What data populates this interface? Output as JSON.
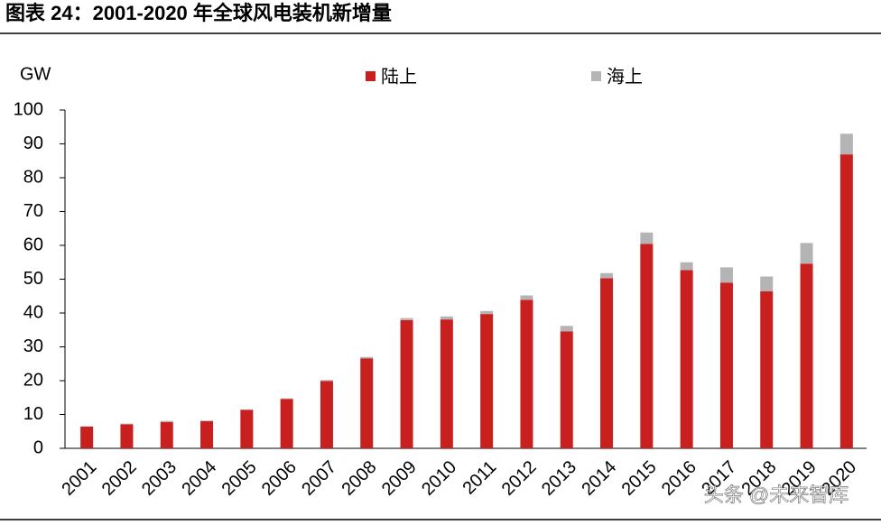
{
  "chart_data": {
    "type": "stacked_bar",
    "title": "图表 24：2001-2020 年全球风电装机新增量",
    "y_label": "GW",
    "categories": [
      "2001",
      "2002",
      "2003",
      "2004",
      "2005",
      "2006",
      "2007",
      "2008",
      "2009",
      "2010",
      "2011",
      "2012",
      "2013",
      "2014",
      "2015",
      "2016",
      "2017",
      "2018",
      "2019",
      "2020"
    ],
    "series": [
      {
        "name": "陆上",
        "color": "#c8201f",
        "values": [
          6.4,
          7.1,
          7.8,
          8.0,
          11.4,
          14.6,
          19.9,
          26.6,
          37.9,
          38.1,
          39.7,
          43.9,
          34.6,
          50.3,
          60.4,
          52.7,
          49.0,
          46.4,
          54.6,
          86.9
        ]
      },
      {
        "name": "海上",
        "color": "#b4b4b4",
        "values": [
          0.1,
          0.2,
          0.3,
          0.2,
          0.1,
          0.2,
          0.3,
          0.4,
          0.6,
          0.9,
          0.9,
          1.3,
          1.6,
          1.5,
          3.4,
          2.3,
          4.5,
          4.4,
          6.1,
          6.1
        ]
      }
    ],
    "ylim": [
      0,
      100
    ],
    "yticks": [
      0,
      10,
      20,
      30,
      40,
      50,
      60,
      70,
      80,
      90,
      100
    ],
    "watermark": "头条 @未来智库"
  }
}
